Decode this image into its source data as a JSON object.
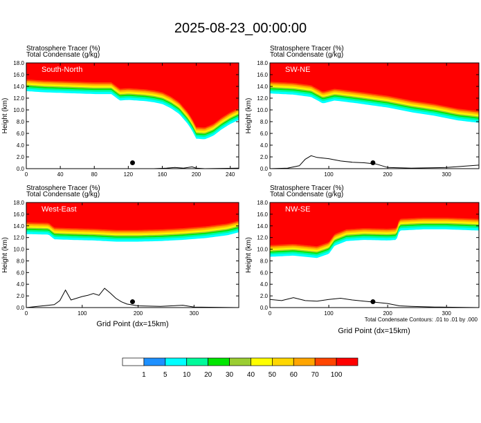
{
  "title": "2025-08-23_00:00:00",
  "panel_header": {
    "line1": "Stratosphere Tracer   (%)",
    "line2": "Total Condensate   (g/kg)"
  },
  "ylabel": "Height (km)",
  "xlabel": "Grid Point (dx=15km)",
  "contour_note": "Total Condensate Contours: .01 to .01 by .000",
  "colorbar": {
    "levels": [
      "1",
      "5",
      "10",
      "20",
      "30",
      "40",
      "50",
      "60",
      "70",
      "100"
    ],
    "colors": [
      "#ffffff",
      "#1e90ff",
      "#00ffff",
      "#00fa9a",
      "#00e600",
      "#9acd32",
      "#ffff00",
      "#ffd700",
      "#ffa500",
      "#ff4500",
      "#ff0000"
    ]
  },
  "chart_data": [
    {
      "type": "heatmap",
      "name": "South-North",
      "xlim": [
        0,
        250
      ],
      "ylim": [
        0,
        18
      ],
      "xticks": [
        0,
        40,
        80,
        120,
        160,
        200,
        240
      ],
      "yticks": [
        0.0,
        2.0,
        4.0,
        6.0,
        8.0,
        10.0,
        12.0,
        14.0,
        16.0,
        18.0
      ],
      "tropopause_height_km": {
        "x": [
          0,
          20,
          40,
          60,
          80,
          100,
          110,
          120,
          140,
          150,
          160,
          170,
          180,
          190,
          195,
          200,
          210,
          220,
          230,
          240,
          250
        ],
        "y": [
          15.2,
          15.0,
          14.9,
          14.8,
          14.7,
          14.7,
          13.6,
          13.7,
          13.5,
          13.3,
          13.0,
          12.3,
          11.3,
          9.6,
          8.5,
          7.1,
          7.0,
          7.6,
          8.7,
          9.6,
          10.3
        ]
      },
      "terrain_km": {
        "x": [
          0,
          150,
          165,
          175,
          185,
          195,
          200,
          210,
          250
        ],
        "y": [
          0.0,
          0.0,
          0.1,
          0.2,
          0.1,
          0.3,
          0.1,
          0.0,
          0.1
        ]
      },
      "marker": {
        "x": 125,
        "y": 1.0
      }
    },
    {
      "type": "heatmap",
      "name": "SW-NE",
      "xlim": [
        0,
        355
      ],
      "ylim": [
        0,
        18
      ],
      "xticks": [
        0,
        100,
        200,
        300
      ],
      "yticks": [
        0.0,
        2.0,
        4.0,
        6.0,
        8.0,
        10.0,
        12.0,
        14.0,
        16.0,
        18.0
      ],
      "tropopause_height_km": {
        "x": [
          0,
          40,
          70,
          90,
          110,
          150,
          200,
          240,
          280,
          320,
          355
        ],
        "y": [
          14.8,
          14.6,
          14.2,
          13.1,
          13.6,
          13.1,
          12.4,
          11.6,
          11.0,
          10.2,
          9.8
        ]
      },
      "terrain_km": {
        "x": [
          0,
          30,
          50,
          60,
          70,
          80,
          100,
          120,
          140,
          160,
          180,
          200,
          240,
          300,
          355
        ],
        "y": [
          0.0,
          0.1,
          0.5,
          1.6,
          2.2,
          1.9,
          1.7,
          1.3,
          1.1,
          1.0,
          0.8,
          0.2,
          0.1,
          0.2,
          0.6
        ]
      },
      "marker": {
        "x": 175,
        "y": 1.0
      }
    },
    {
      "type": "heatmap",
      "name": "West-East",
      "xlim": [
        0,
        380
      ],
      "ylim": [
        0,
        18
      ],
      "xticks": [
        0,
        100,
        200,
        300
      ],
      "yticks": [
        0.0,
        2.0,
        4.0,
        6.0,
        8.0,
        10.0,
        12.0,
        14.0,
        16.0,
        18.0
      ],
      "tropopause_height_km": {
        "x": [
          0,
          40,
          50,
          80,
          120,
          160,
          200,
          240,
          280,
          320,
          360,
          380
        ],
        "y": [
          14.6,
          14.5,
          13.7,
          13.6,
          13.5,
          13.3,
          13.3,
          13.4,
          13.6,
          13.9,
          14.4,
          14.9
        ]
      },
      "terrain_km": {
        "x": [
          0,
          20,
          40,
          50,
          60,
          70,
          80,
          90,
          100,
          110,
          120,
          130,
          140,
          150,
          160,
          170,
          180,
          200,
          240,
          280,
          300,
          380
        ],
        "y": [
          0.0,
          0.2,
          0.4,
          0.5,
          1.2,
          3.0,
          1.3,
          1.6,
          1.9,
          2.1,
          2.4,
          2.1,
          3.3,
          2.5,
          1.6,
          1.0,
          0.6,
          0.3,
          0.2,
          0.4,
          0.1,
          0.0
        ]
      },
      "marker": {
        "x": 190,
        "y": 1.0
      }
    },
    {
      "type": "heatmap",
      "name": "NW-SE",
      "xlim": [
        0,
        355
      ],
      "ylim": [
        0,
        18
      ],
      "xticks": [
        0,
        100,
        200,
        300
      ],
      "yticks": [
        0.0,
        2.0,
        4.0,
        6.0,
        8.0,
        10.0,
        12.0,
        14.0,
        16.0,
        18.0
      ],
      "tropopause_height_km": {
        "x": [
          0,
          40,
          80,
          100,
          110,
          130,
          160,
          200,
          215,
          220,
          260,
          300,
          355
        ],
        "y": [
          10.7,
          10.9,
          10.5,
          11.2,
          12.6,
          13.4,
          13.6,
          13.5,
          13.6,
          15.2,
          15.4,
          15.4,
          15.2
        ]
      },
      "terrain_km": {
        "x": [
          0,
          20,
          40,
          60,
          80,
          100,
          120,
          140,
          160,
          180,
          200,
          220,
          240,
          280,
          355
        ],
        "y": [
          1.4,
          1.2,
          1.7,
          1.2,
          1.1,
          1.4,
          1.6,
          1.3,
          1.1,
          0.9,
          0.7,
          0.3,
          0.2,
          0.1,
          0.0
        ]
      },
      "marker": {
        "x": 175,
        "y": 1.0
      }
    }
  ]
}
